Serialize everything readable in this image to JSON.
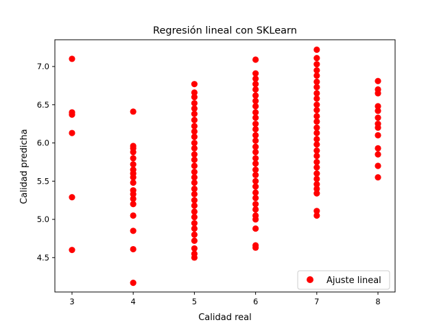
{
  "chart_data": {
    "type": "scatter",
    "title": "Regresión lineal con SKLearn",
    "xlabel": "Calidad real",
    "ylabel": "Calidad predicha",
    "xlim": [
      2.72,
      8.28
    ],
    "ylim": [
      4.05,
      7.35
    ],
    "xticks": [
      3,
      4,
      5,
      6,
      7,
      8
    ],
    "yticks": [
      4.5,
      5.0,
      5.5,
      6.0,
      6.5,
      7.0
    ],
    "grid": false,
    "legend": {
      "position": "lower-right",
      "entries": [
        "Ajuste lineal"
      ]
    },
    "series": [
      {
        "name": "Ajuste lineal",
        "color": "#ff0000",
        "points": [
          [
            3,
            7.1
          ],
          [
            3,
            6.4
          ],
          [
            3,
            6.37
          ],
          [
            3,
            6.13
          ],
          [
            3,
            5.29
          ],
          [
            3,
            4.6
          ],
          [
            4,
            6.41
          ],
          [
            4,
            5.96
          ],
          [
            4,
            5.93
          ],
          [
            4,
            5.88
          ],
          [
            4,
            5.8
          ],
          [
            4,
            5.72
          ],
          [
            4,
            5.65
          ],
          [
            4,
            5.6
          ],
          [
            4,
            5.55
          ],
          [
            4,
            5.48
          ],
          [
            4,
            5.38
          ],
          [
            4,
            5.33
          ],
          [
            4,
            5.27
          ],
          [
            4,
            5.2
          ],
          [
            4,
            5.05
          ],
          [
            4,
            4.85
          ],
          [
            4,
            4.61
          ],
          [
            4,
            4.17
          ],
          [
            5,
            6.77
          ],
          [
            5,
            6.66
          ],
          [
            5,
            6.6
          ],
          [
            5,
            6.52
          ],
          [
            5,
            6.45
          ],
          [
            5,
            6.38
          ],
          [
            5,
            6.3
          ],
          [
            5,
            6.22
          ],
          [
            5,
            6.15
          ],
          [
            5,
            6.08
          ],
          [
            5,
            6.0
          ],
          [
            5,
            5.93
          ],
          [
            5,
            5.85
          ],
          [
            5,
            5.78
          ],
          [
            5,
            5.7
          ],
          [
            5,
            5.62
          ],
          [
            5,
            5.55
          ],
          [
            5,
            5.48
          ],
          [
            5,
            5.4
          ],
          [
            5,
            5.33
          ],
          [
            5,
            5.25
          ],
          [
            5,
            5.18
          ],
          [
            5,
            5.1
          ],
          [
            5,
            5.03
          ],
          [
            5,
            4.95
          ],
          [
            5,
            4.88
          ],
          [
            5,
            4.8
          ],
          [
            5,
            4.72
          ],
          [
            5,
            4.62
          ],
          [
            5,
            4.55
          ],
          [
            5,
            4.5
          ],
          [
            6,
            7.09
          ],
          [
            6,
            6.91
          ],
          [
            6,
            6.84
          ],
          [
            6,
            6.77
          ],
          [
            6,
            6.7
          ],
          [
            6,
            6.62
          ],
          [
            6,
            6.55
          ],
          [
            6,
            6.48
          ],
          [
            6,
            6.4
          ],
          [
            6,
            6.33
          ],
          [
            6,
            6.25
          ],
          [
            6,
            6.18
          ],
          [
            6,
            6.1
          ],
          [
            6,
            6.03
          ],
          [
            6,
            5.95
          ],
          [
            6,
            5.88
          ],
          [
            6,
            5.8
          ],
          [
            6,
            5.73
          ],
          [
            6,
            5.65
          ],
          [
            6,
            5.58
          ],
          [
            6,
            5.5
          ],
          [
            6,
            5.43
          ],
          [
            6,
            5.35
          ],
          [
            6,
            5.28
          ],
          [
            6,
            5.2
          ],
          [
            6,
            5.13
          ],
          [
            6,
            5.05
          ],
          [
            6,
            5.0
          ],
          [
            6,
            4.88
          ],
          [
            6,
            4.66
          ],
          [
            6,
            4.63
          ],
          [
            7,
            7.22
          ],
          [
            7,
            7.11
          ],
          [
            7,
            7.03
          ],
          [
            7,
            6.95
          ],
          [
            7,
            6.88
          ],
          [
            7,
            6.8
          ],
          [
            7,
            6.73
          ],
          [
            7,
            6.65
          ],
          [
            7,
            6.58
          ],
          [
            7,
            6.5
          ],
          [
            7,
            6.43
          ],
          [
            7,
            6.35
          ],
          [
            7,
            6.28
          ],
          [
            7,
            6.2
          ],
          [
            7,
            6.13
          ],
          [
            7,
            6.05
          ],
          [
            7,
            5.98
          ],
          [
            7,
            5.9
          ],
          [
            7,
            5.83
          ],
          [
            7,
            5.75
          ],
          [
            7,
            5.68
          ],
          [
            7,
            5.6
          ],
          [
            7,
            5.53
          ],
          [
            7,
            5.46
          ],
          [
            7,
            5.4
          ],
          [
            7,
            5.34
          ],
          [
            7,
            5.11
          ],
          [
            7,
            5.05
          ],
          [
            8,
            6.81
          ],
          [
            8,
            6.7
          ],
          [
            8,
            6.65
          ],
          [
            8,
            6.48
          ],
          [
            8,
            6.42
          ],
          [
            8,
            6.33
          ],
          [
            8,
            6.25
          ],
          [
            8,
            6.2
          ],
          [
            8,
            6.1
          ],
          [
            8,
            5.93
          ],
          [
            8,
            5.85
          ],
          [
            8,
            5.7
          ],
          [
            8,
            5.55
          ]
        ]
      }
    ]
  }
}
